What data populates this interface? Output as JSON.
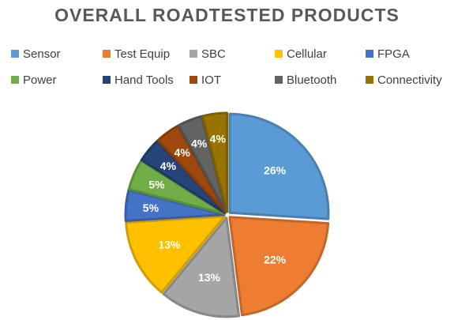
{
  "chart_data": {
    "type": "pie",
    "title": "OVERALL ROADTESTED PRODUCTS",
    "legend_position": "top",
    "exploded": true,
    "categories": [
      "Sensor",
      "Test Equip",
      "SBC",
      "Cellular",
      "FPGA",
      "Power",
      "Hand Tools",
      "IOT",
      "Bluetooth",
      "Connectivity"
    ],
    "values": [
      26,
      22,
      13,
      13,
      5,
      5,
      4,
      4,
      4,
      4
    ],
    "labels": [
      "26%",
      "22%",
      "13%",
      "13%",
      "5%",
      "5%",
      "4%",
      "4%",
      "4%",
      "4%"
    ],
    "colors": [
      "#5B9BD5",
      "#ED7D31",
      "#A5A5A5",
      "#FFC000",
      "#4472C4",
      "#70AD47",
      "#264478",
      "#9E480E",
      "#636363",
      "#997300"
    ]
  }
}
